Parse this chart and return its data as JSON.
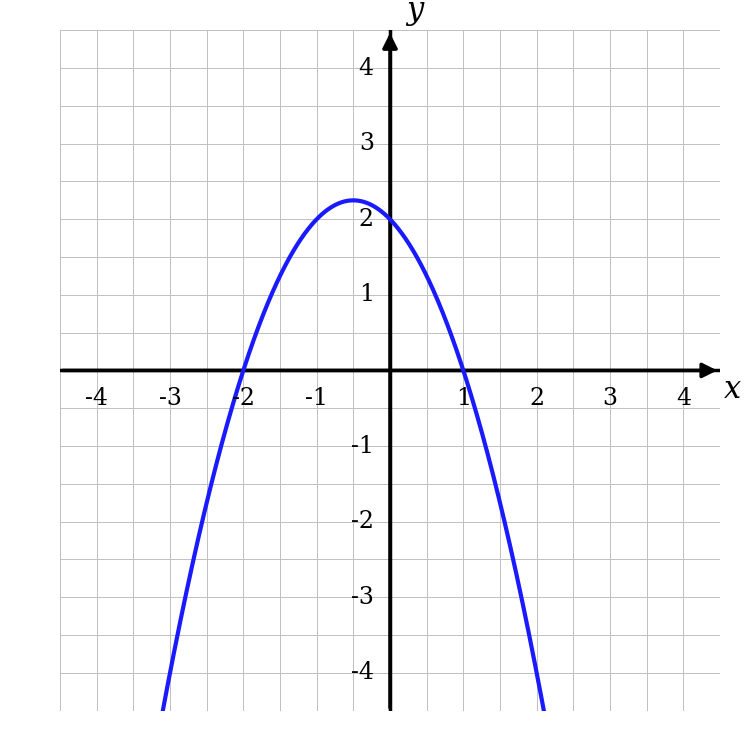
{
  "title": "",
  "xlabel": "x",
  "ylabel": "y",
  "xlim": [
    -4.5,
    4.5
  ],
  "ylim": [
    -4.5,
    4.5
  ],
  "xticks": [
    -4,
    -3,
    -2,
    -1,
    1,
    2,
    3,
    4
  ],
  "yticks": [
    -4,
    -3,
    -2,
    -1,
    1,
    2,
    3,
    4
  ],
  "grid_color": "#c0c0c0",
  "grid_linewidth": 0.7,
  "curve_color": "#1a1aff",
  "curve_linewidth": 3.0,
  "background_color": "#ffffff",
  "func_params": {
    "a": -1,
    "b": -1,
    "c": 2
  },
  "x_start": -4.5,
  "x_end": 4.5,
  "axis_color": "#000000",
  "tick_fontsize": 17,
  "label_fontsize": 22,
  "arrow_lw": 2.5,
  "arrow_mutation_scale": 22
}
